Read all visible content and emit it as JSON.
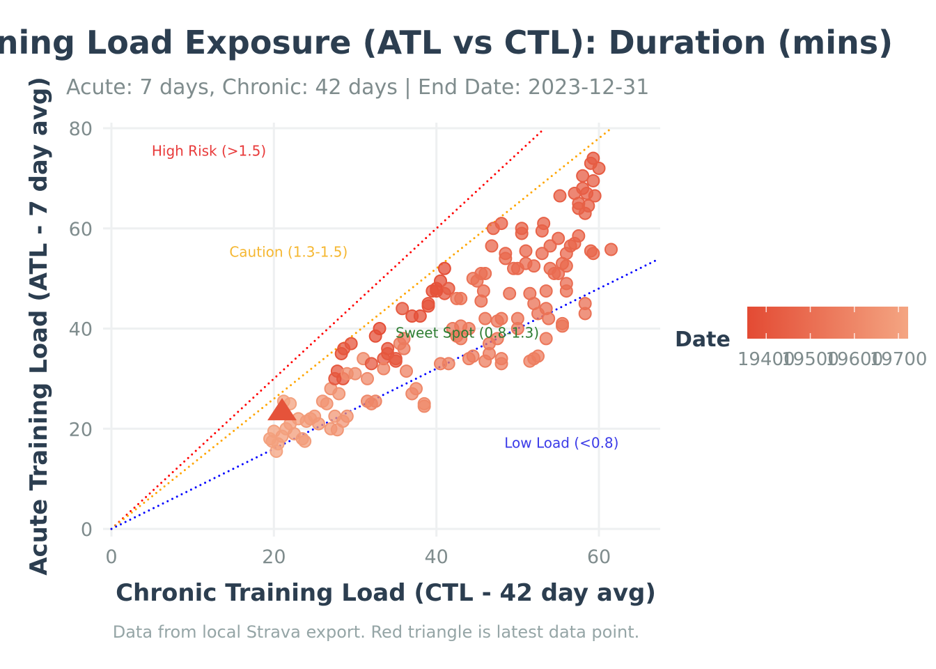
{
  "chart_data": {
    "type": "scatter",
    "title": "Training Load Exposure (ATL vs CTL): Duration (mins)",
    "subtitle": "Acute: 7 days, Chronic: 42 days | End Date: 2023-12-31",
    "caption": "Data from local Strava export. Red triangle is latest data point.",
    "xlabel": "Chronic Training Load (CTL - 42 day avg)",
    "ylabel": "Acute Training Load (ATL - 7 day avg)",
    "xlim": [
      0,
      67
    ],
    "ylim": [
      0,
      80
    ],
    "xticks": [
      "0",
      "20",
      "40",
      "60"
    ],
    "yticks": [
      "0",
      "20",
      "40",
      "60",
      "80"
    ],
    "grid": true,
    "legend": {
      "title": "Date",
      "placement": "right",
      "ticks": [
        "19400",
        "19500",
        "19600",
        "19700"
      ],
      "range": [
        19357,
        19722
      ],
      "color_low": "#E34A33",
      "color_high": "#F4A582"
    },
    "reference_lines": [
      {
        "label": "High Risk (>1.5)",
        "slope": 1.5,
        "color": "#FF0000",
        "label_color": "#E83A3A",
        "label_at": [
          12,
          75.5
        ]
      },
      {
        "label": "Caution (1.3-1.5)",
        "slope": 1.3,
        "color": "#FFA500",
        "label_color": "#F5B731",
        "label_at": [
          21.8,
          55.3
        ]
      },
      {
        "label": "Sweet Spot (0.8-1.3)",
        "slope": null,
        "color": null,
        "label_color": "#2E7D32",
        "label_at": [
          43.8,
          39.2
        ]
      },
      {
        "label": "Low Load (<0.8)",
        "slope": 0.8,
        "color": "#0000FF",
        "label_color": "#3B3BE8",
        "label_at": [
          55.4,
          17.2
        ]
      }
    ],
    "latest_point": {
      "x": 21.0,
      "y": 23.5,
      "marker": "triangle",
      "color": "#E5533A"
    },
    "points": [
      [
        19.5,
        18,
        19700
      ],
      [
        20,
        19.5,
        19705
      ],
      [
        20.5,
        17,
        19710
      ],
      [
        21,
        18.5,
        19690
      ],
      [
        20.3,
        15.5,
        19715
      ],
      [
        21.5,
        20,
        19700
      ],
      [
        22,
        21,
        19695
      ],
      [
        22.5,
        19,
        19685
      ],
      [
        23,
        22,
        19690
      ],
      [
        23.5,
        18,
        19680
      ],
      [
        24,
        21.5,
        19682
      ],
      [
        24.5,
        22,
        19678
      ],
      [
        25,
        22.5,
        19675
      ],
      [
        25.5,
        21,
        19670
      ],
      [
        23.8,
        17.5,
        19688
      ],
      [
        21.2,
        25.5,
        19712
      ],
      [
        22,
        25,
        19708
      ],
      [
        19.8,
        17.5,
        19702
      ],
      [
        26,
        25.5,
        19660
      ],
      [
        26.5,
        25,
        19655
      ],
      [
        27,
        28,
        19640
      ],
      [
        27.5,
        30,
        19420
      ],
      [
        27.8,
        31.5,
        19410
      ],
      [
        28,
        27,
        19650
      ],
      [
        27.5,
        22.5,
        19665
      ],
      [
        27,
        20,
        19668
      ],
      [
        27.8,
        19.8,
        19662
      ],
      [
        28.5,
        21.5,
        19660
      ],
      [
        29,
        22.5,
        19655
      ],
      [
        28.5,
        30,
        19400
      ],
      [
        28.3,
        35,
        19395
      ],
      [
        28.6,
        36,
        19400
      ],
      [
        29.5,
        37,
        19405
      ],
      [
        29,
        31,
        19630
      ],
      [
        30,
        31,
        19625
      ],
      [
        31,
        34,
        19620
      ],
      [
        31.5,
        30,
        19615
      ],
      [
        31.5,
        25.5,
        19600
      ],
      [
        32,
        25,
        19598
      ],
      [
        32.5,
        25.5,
        19596
      ],
      [
        32,
        33,
        19420
      ],
      [
        32.5,
        38.5,
        19380
      ],
      [
        33,
        40,
        19375
      ],
      [
        33.5,
        34,
        19420
      ],
      [
        33.5,
        32,
        19590
      ],
      [
        34,
        35,
        19410
      ],
      [
        34,
        36,
        19405
      ],
      [
        35,
        34,
        19415
      ],
      [
        35,
        33.5,
        19418
      ],
      [
        35.5,
        37,
        19560
      ],
      [
        35.8,
        44,
        19430
      ],
      [
        36,
        38,
        19550
      ],
      [
        36.3,
        31.5,
        19580
      ],
      [
        37,
        42.5,
        19390
      ],
      [
        37,
        27,
        19600
      ],
      [
        37.5,
        28,
        19605
      ],
      [
        38,
        42.5,
        19385
      ],
      [
        38.5,
        24.5,
        19610
      ],
      [
        38.5,
        25,
        19612
      ],
      [
        39,
        45,
        19400
      ],
      [
        39.5,
        47.5,
        19395
      ],
      [
        40,
        48,
        19390
      ],
      [
        40.5,
        49.5,
        19380
      ],
      [
        41,
        52,
        19375
      ],
      [
        41,
        47,
        19420
      ],
      [
        41.5,
        48,
        19430
      ],
      [
        40.5,
        33,
        19570
      ],
      [
        41.5,
        33,
        19575
      ],
      [
        42,
        40,
        19540
      ],
      [
        42.5,
        46,
        19530
      ],
      [
        43,
        46,
        19525
      ],
      [
        43,
        40.5,
        19540
      ],
      [
        44,
        40,
        19545
      ],
      [
        44,
        34,
        19560
      ],
      [
        44.5,
        50,
        19520
      ],
      [
        45,
        49.5,
        19515
      ],
      [
        45.5,
        51,
        19510
      ],
      [
        46,
        51,
        19505
      ],
      [
        45.5,
        45.5,
        19500
      ],
      [
        45.8,
        47.5,
        19498
      ],
      [
        46,
        42,
        19530
      ],
      [
        46,
        33.5,
        19560
      ],
      [
        46.5,
        35,
        19555
      ],
      [
        46.5,
        37,
        19550
      ],
      [
        46.8,
        56.5,
        19470
      ],
      [
        47,
        60,
        19460
      ],
      [
        47.5,
        38,
        19545
      ],
      [
        47.5,
        41.5,
        19535
      ],
      [
        48,
        42,
        19530
      ],
      [
        48,
        61,
        19455
      ],
      [
        48,
        34,
        19560
      ],
      [
        48,
        33,
        19565
      ],
      [
        48.5,
        55,
        19475
      ],
      [
        48.5,
        54,
        19480
      ],
      [
        49,
        47,
        19500
      ],
      [
        49.5,
        52,
        19490
      ],
      [
        50,
        52,
        19485
      ],
      [
        50,
        40,
        19540
      ],
      [
        50.5,
        60,
        19450
      ],
      [
        50.5,
        59,
        19452
      ],
      [
        51,
        55.5,
        19470
      ],
      [
        51,
        53,
        19480
      ],
      [
        51.5,
        47,
        19500
      ],
      [
        51.5,
        33.5,
        19570
      ],
      [
        52,
        52.5,
        19485
      ],
      [
        52,
        34,
        19568
      ],
      [
        52.5,
        34.5,
        19566
      ],
      [
        52,
        45,
        19510
      ],
      [
        52.5,
        43,
        19520
      ],
      [
        53,
        55,
        19475
      ],
      [
        53,
        59.5,
        19455
      ],
      [
        53.2,
        61,
        19450
      ],
      [
        53.5,
        47.5,
        19500
      ],
      [
        53.5,
        44,
        19515
      ],
      [
        53.8,
        42,
        19520
      ],
      [
        53.5,
        38,
        19540
      ],
      [
        54,
        52,
        19488
      ],
      [
        54,
        56.5,
        19468
      ],
      [
        54.5,
        51,
        19490
      ],
      [
        55,
        58,
        19462
      ],
      [
        55,
        51,
        19490
      ],
      [
        55.2,
        66.5,
        19440
      ],
      [
        55.5,
        53,
        19482
      ],
      [
        55.5,
        41,
        19525
      ],
      [
        56,
        55,
        19476
      ],
      [
        56,
        52.5,
        19484
      ],
      [
        56,
        49,
        19495
      ],
      [
        56,
        47.5,
        19500
      ],
      [
        56.5,
        56.5,
        19466
      ],
      [
        57,
        57,
        19465
      ],
      [
        57,
        67,
        19440
      ],
      [
        57.5,
        65,
        19445
      ],
      [
        57.5,
        64,
        19447
      ],
      [
        57.5,
        58.5,
        19460
      ],
      [
        58,
        70.5,
        19430
      ],
      [
        58,
        68,
        19436
      ],
      [
        58.3,
        63,
        19448
      ],
      [
        58.3,
        45,
        19505
      ],
      [
        58.3,
        43,
        19512
      ],
      [
        58.5,
        67,
        19438
      ],
      [
        58.7,
        64.5,
        19445
      ],
      [
        59,
        73,
        19425
      ],
      [
        59,
        55.5,
        19470
      ],
      [
        59.3,
        74,
        19422
      ],
      [
        59.3,
        69.5,
        19432
      ],
      [
        59.3,
        55,
        19472
      ],
      [
        59.5,
        66.5,
        19440
      ],
      [
        60,
        72,
        19428
      ],
      [
        61.5,
        55.8,
        19470
      ],
      [
        55.5,
        40.5,
        19528
      ],
      [
        50,
        42,
        19532
      ],
      [
        44.5,
        34.5,
        19558
      ],
      [
        43,
        38,
        19548
      ],
      [
        42.5,
        38.5,
        19546
      ],
      [
        40,
        47.5,
        19392
      ],
      [
        39,
        44.5,
        19402
      ],
      [
        36,
        36,
        19552
      ]
    ]
  }
}
